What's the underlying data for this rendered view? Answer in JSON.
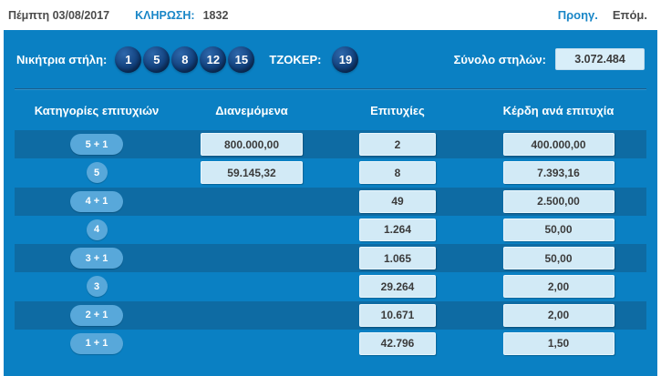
{
  "topbar": {
    "date": "Πέμπτη 03/08/2017",
    "draw_label": "ΚΛΗΡΩΣΗ:",
    "draw_number": "1832",
    "prev_label": "Προηγ.",
    "next_label": "Επόμ."
  },
  "winning": {
    "label": "Νικήτρια στήλη:",
    "numbers": [
      "1",
      "5",
      "8",
      "12",
      "15"
    ],
    "joker_label": "ΤΖΟΚΕΡ:",
    "joker_number": "19",
    "total_label": "Σύνολο στηλών:",
    "total_value": "3.072.484"
  },
  "table": {
    "headers": [
      "Κατηγορίες επιτυχιών",
      "Διανεμόμενα",
      "Επιτυχίες",
      "Κέρδη ανά επιτυχία"
    ],
    "rows": [
      {
        "category": "5 + 1",
        "distributed": "800.000,00",
        "winners": "2",
        "prize": "400.000,00"
      },
      {
        "category": "5",
        "distributed": "59.145,32",
        "winners": "8",
        "prize": "7.393,16"
      },
      {
        "category": "4 + 1",
        "distributed": "",
        "winners": "49",
        "prize": "2.500,00"
      },
      {
        "category": "4",
        "distributed": "",
        "winners": "1.264",
        "prize": "50,00"
      },
      {
        "category": "3 + 1",
        "distributed": "",
        "winners": "1.065",
        "prize": "50,00"
      },
      {
        "category": "3",
        "distributed": "",
        "winners": "29.264",
        "prize": "2,00"
      },
      {
        "category": "2 + 1",
        "distributed": "",
        "winners": "10.671",
        "prize": "2,00"
      },
      {
        "category": "1 + 1",
        "distributed": "",
        "winners": "42.796",
        "prize": "1,50"
      }
    ]
  },
  "colors": {
    "panel_blue": "#0a80c3",
    "stripe_blue": "#0e6ba3",
    "pill_blue": "#58a8da",
    "ball_navy": "#12427f",
    "link_blue": "#1986c7",
    "box_light": "#d2eaf6"
  }
}
